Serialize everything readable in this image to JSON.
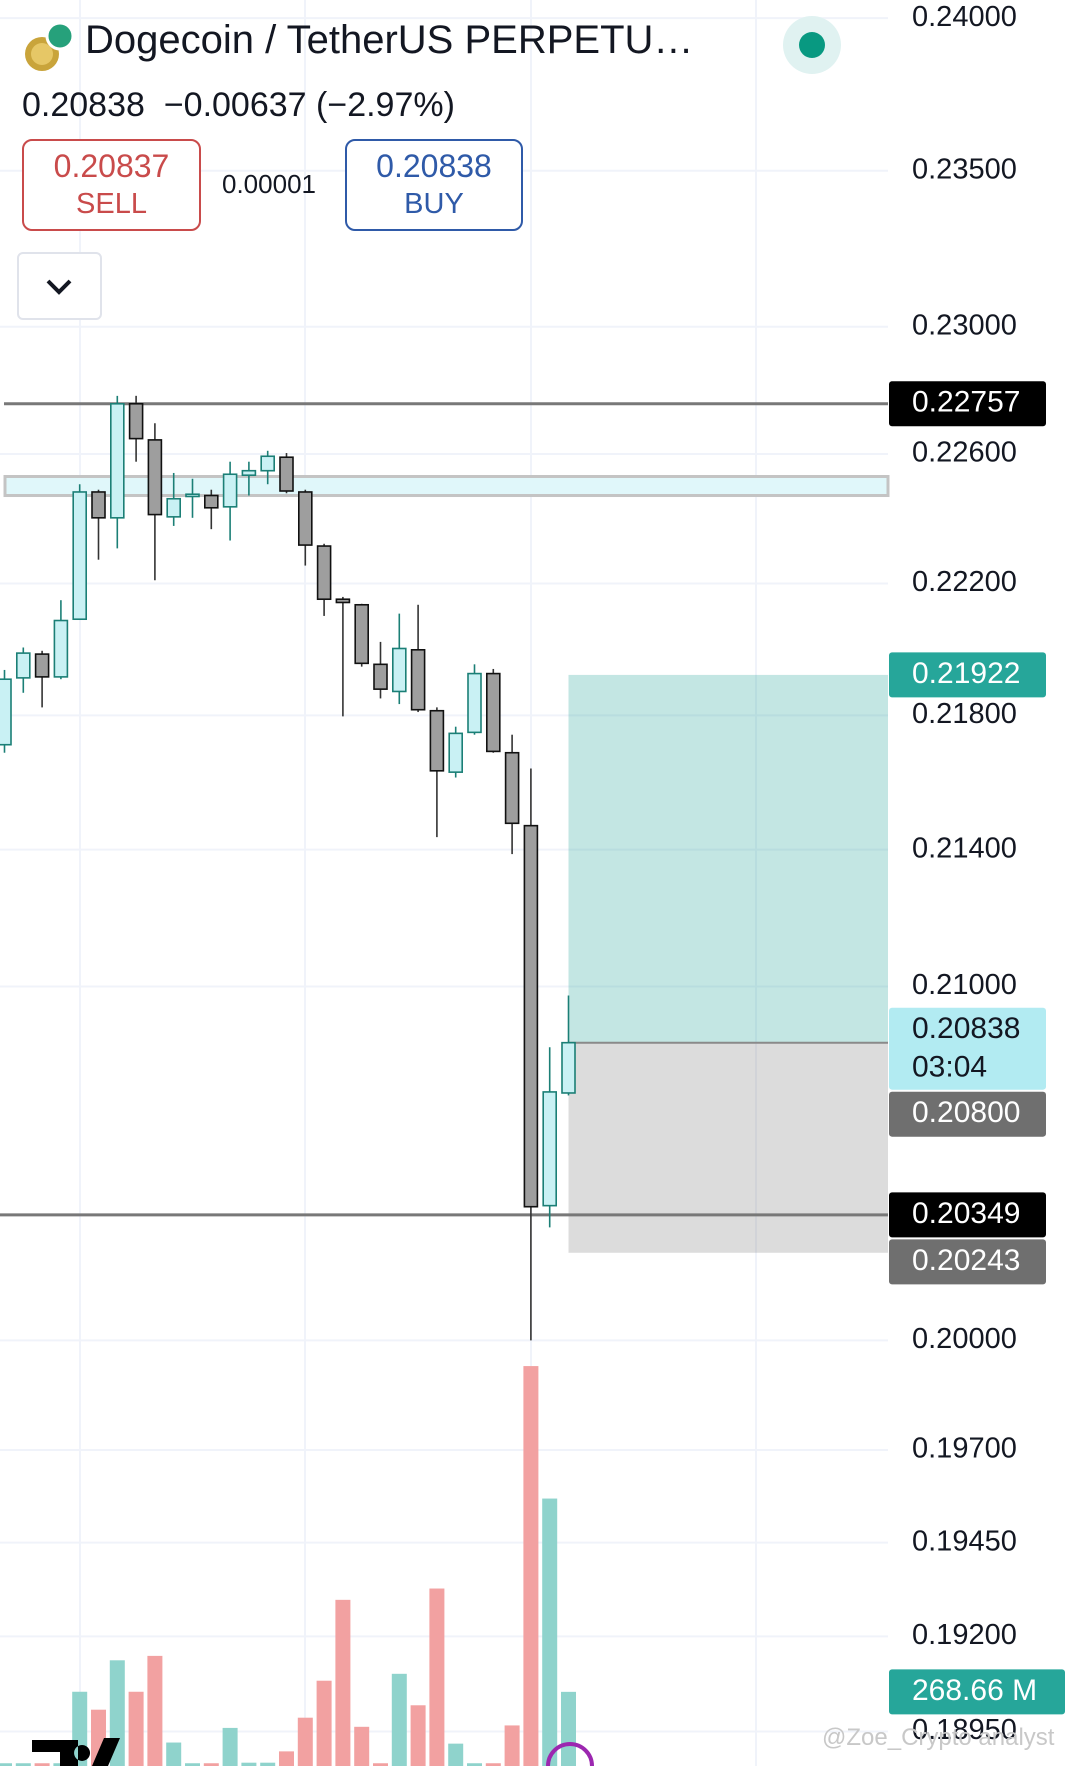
{
  "header": {
    "title": "Dogecoin / TetherUS PERPETU…",
    "price": "0.20838",
    "change": "−0.00637 (−2.97%)",
    "sell_price": "0.20837",
    "sell_label": "SELL",
    "spread": "0.00001",
    "buy_price": "0.20838",
    "buy_label": "BUY",
    "watermark": "@Zoe_Crypto analyst"
  },
  "chart_data": {
    "type": "candlestick",
    "log_scale": true,
    "ylim": [
      0.1886,
      0.2406
    ],
    "yticks": [
      {
        "value": 0.24,
        "label": "0.24000"
      },
      {
        "value": 0.235,
        "label": "0.23500"
      },
      {
        "value": 0.23,
        "label": "0.23000"
      },
      {
        "value": 0.226,
        "label": "0.22600"
      },
      {
        "value": 0.222,
        "label": "0.22200"
      },
      {
        "value": 0.218,
        "label": "0.21800"
      },
      {
        "value": 0.214,
        "label": "0.21400"
      },
      {
        "value": 0.21,
        "label": "0.21000"
      },
      {
        "value": 0.2,
        "label": "0.20000"
      },
      {
        "value": 0.197,
        "label": "0.19700"
      },
      {
        "value": 0.1945,
        "label": "0.19450"
      },
      {
        "value": 0.192,
        "label": "0.19200"
      },
      {
        "value": 0.1895,
        "label": "0.18950"
      }
    ],
    "grid": true,
    "up_color": "#1b7f76",
    "up_fill": "#c9f1f4",
    "down_color": "#111111",
    "down_fill": "#9e9e9e",
    "volume_up_color": "#8fd3cc",
    "volume_down_color": "#f2a1a1",
    "open": [
      0.21712,
      0.21913,
      0.21985,
      0.21916,
      0.22091,
      0.22482,
      0.22402,
      0.22757,
      0.22644,
      0.22405,
      0.22468,
      0.22471,
      0.22436,
      0.22534,
      0.22548,
      0.2259,
      0.22482,
      0.22315,
      0.22152,
      0.22135,
      0.21954,
      0.21872,
      0.21998,
      0.21814,
      0.2163,
      0.21749,
      0.21926,
      0.21688,
      0.21471,
      0.20375,
      0.20694
    ],
    "high": [
      0.21937,
      0.22005,
      0.21995,
      0.22149,
      0.22506,
      0.22489,
      0.22782,
      0.22782,
      0.22696,
      0.22541,
      0.22523,
      0.22489,
      0.22576,
      0.22576,
      0.2261,
      0.22603,
      0.22489,
      0.22322,
      0.22159,
      0.22138,
      0.22022,
      0.22108,
      0.22135,
      0.21824,
      0.21766,
      0.21954,
      0.2194,
      0.21742,
      0.21641,
      0.20825,
      0.20974
    ],
    "low": [
      0.21688,
      0.21868,
      0.21824,
      0.21909,
      0.22091,
      0.22273,
      0.22308,
      0.22576,
      0.2221,
      0.22377,
      0.22402,
      0.22367,
      0.22332,
      0.22471,
      0.22506,
      0.22478,
      0.22255,
      0.22101,
      0.21797,
      0.21947,
      0.21851,
      0.21834,
      0.2181,
      0.21437,
      0.21614,
      0.21742,
      0.21688,
      0.21387,
      0.2,
      0.20314,
      0.20687
    ],
    "close": [
      0.21909,
      0.21988,
      0.21916,
      0.22087,
      0.22482,
      0.22402,
      0.22757,
      0.22648,
      0.22412,
      0.22461,
      0.22475,
      0.22433,
      0.22537,
      0.22548,
      0.22593,
      0.22485,
      0.22318,
      0.22152,
      0.22142,
      0.21957,
      0.21879,
      0.22002,
      0.21817,
      0.21634,
      0.21746,
      0.21926,
      0.21692,
      0.21478,
      0.20372,
      0.20697,
      0.20838
    ],
    "volume": [
      10,
      10,
      10,
      10,
      269,
      204,
      383,
      269,
      399,
      85,
      10,
      10,
      138,
      12,
      12,
      53,
      175,
      309,
      602,
      142,
      10,
      334,
      220,
      643,
      81,
      10,
      10,
      147,
      1449,
      969,
      268.66
    ],
    "volume_ylim": [
      0,
      1500
    ],
    "volume_tag": {
      "value": 268.66,
      "label": "268.66 M",
      "color": "#26a69a"
    },
    "lines": [
      0.22757,
      0.20349
    ],
    "zone": [
      0.2253,
      0.22471
    ],
    "position": {
      "target": 0.21922,
      "entry": 0.20838,
      "stop": 0.20243
    },
    "price_tags": [
      {
        "value": 0.22757,
        "label": "0.22757",
        "color": "#000000",
        "text_color": "#ffffff"
      },
      {
        "value": 0.21922,
        "label": "0.21922",
        "color": "#26a69a",
        "text_color": "#ffffff"
      },
      {
        "value": 0.20838,
        "label": "0.20838",
        "sublabel": "03:04",
        "color": "#b2ebf2",
        "text_color": "#131722"
      },
      {
        "value": 0.208,
        "label": "0.20800",
        "color": "#6f6f6f",
        "text_color": "#ffffff"
      },
      {
        "value": 0.20349,
        "label": "0.20349",
        "color": "#000000",
        "text_color": "#ffffff"
      },
      {
        "value": 0.20243,
        "label": "0.20243",
        "color": "#6f6f6f",
        "text_color": "#ffffff"
      }
    ]
  }
}
